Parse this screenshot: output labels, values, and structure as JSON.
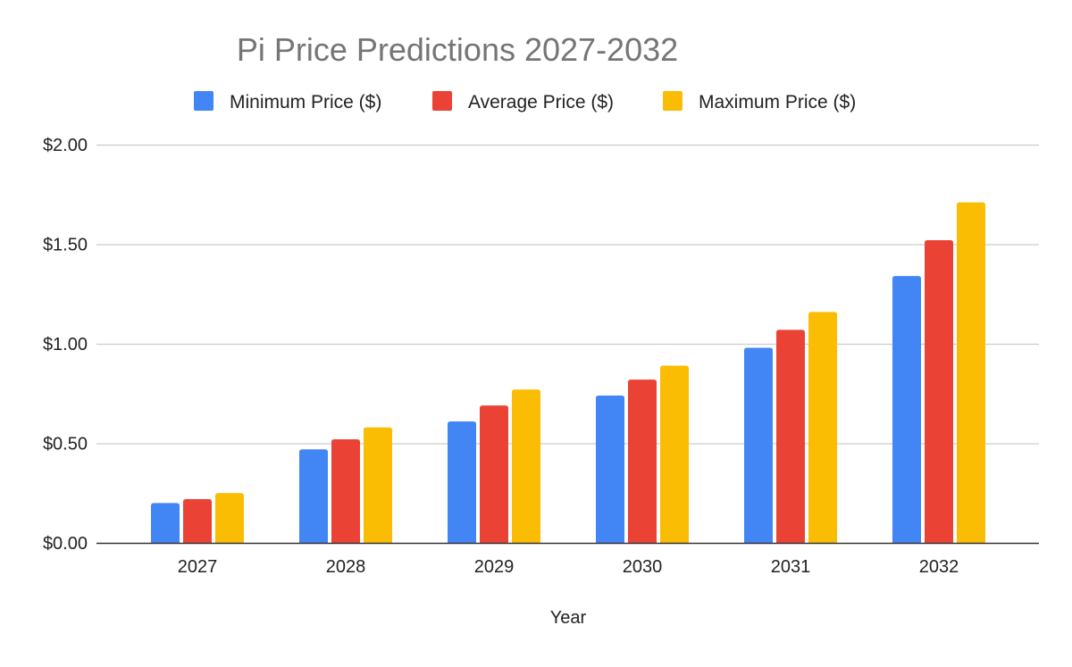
{
  "chart_data": {
    "type": "bar",
    "title": "Pi Price Predictions 2027-2032",
    "xlabel": "Year",
    "ylabel": "",
    "categories": [
      "2027",
      "2028",
      "2029",
      "2030",
      "2031",
      "2032"
    ],
    "series": [
      {
        "name": "Minimum Price ($)",
        "color": "#4285f4",
        "values": [
          0.2,
          0.47,
          0.61,
          0.74,
          0.98,
          1.34
        ]
      },
      {
        "name": "Average Price ($)",
        "color": "#ea4335",
        "values": [
          0.22,
          0.52,
          0.69,
          0.82,
          1.07,
          1.52
        ]
      },
      {
        "name": "Maximum Price ($)",
        "color": "#fbbc04",
        "values": [
          0.25,
          0.58,
          0.77,
          0.89,
          1.16,
          1.71
        ]
      }
    ],
    "ylim": [
      0,
      2
    ],
    "yticks": [
      0,
      0.5,
      1,
      1.5,
      2
    ],
    "ytick_labels": [
      "$0.00",
      "$0.50",
      "$1.00",
      "$1.50",
      "$2.00"
    ],
    "grid": true,
    "legend": "top"
  }
}
